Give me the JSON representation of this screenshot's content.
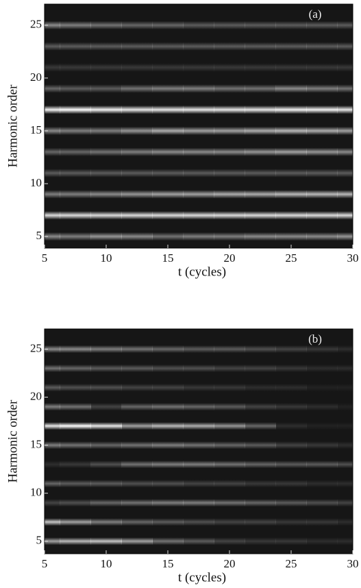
{
  "chart_data": [
    {
      "type": "heatmap",
      "panel_label": "(a)",
      "xlabel": "t (cycles)",
      "ylabel": "Harmonic order",
      "x": [
        5,
        7.5,
        10,
        12.5,
        15,
        17.5,
        20,
        22.5,
        25,
        27.5,
        30
      ],
      "xlim": [
        5,
        30
      ],
      "xticks": [
        5,
        10,
        15,
        20,
        25,
        30
      ],
      "ylim": [
        3.9,
        27
      ],
      "yticks": [
        5,
        10,
        15,
        20,
        25
      ],
      "rows": [
        {
          "harmonic": 25,
          "values": [
            0.5,
            0.45,
            0.4,
            0.35,
            0.35,
            0.3,
            0.3,
            0.3,
            0.3,
            0.3,
            0.3
          ]
        },
        {
          "harmonic": 23,
          "values": [
            0.3,
            0.3,
            0.3,
            0.3,
            0.3,
            0.3,
            0.3,
            0.3,
            0.3,
            0.3,
            0.3
          ]
        },
        {
          "harmonic": 21,
          "values": [
            0.15,
            0.15,
            0.15,
            0.15,
            0.15,
            0.15,
            0.15,
            0.15,
            0.15,
            0.15,
            0.15
          ]
        },
        {
          "harmonic": 19,
          "values": [
            0.35,
            0.3,
            0.3,
            0.4,
            0.45,
            0.45,
            0.4,
            0.4,
            0.5,
            0.45,
            0.4
          ]
        },
        {
          "harmonic": 17,
          "values": [
            0.95,
            1,
            0.95,
            0.9,
            0.9,
            0.9,
            0.9,
            0.9,
            0.95,
            0.95,
            0.9
          ]
        },
        {
          "harmonic": 15,
          "values": [
            0.5,
            0.45,
            0.45,
            0.55,
            0.65,
            0.6,
            0.6,
            0.65,
            0.7,
            0.65,
            0.6
          ]
        },
        {
          "harmonic": 13,
          "values": [
            0.35,
            0.35,
            0.4,
            0.45,
            0.5,
            0.5,
            0.5,
            0.55,
            0.6,
            0.55,
            0.5
          ]
        },
        {
          "harmonic": 11,
          "values": [
            0.3,
            0.3,
            0.3,
            0.3,
            0.3,
            0.3,
            0.3,
            0.3,
            0.3,
            0.3,
            0.3
          ]
        },
        {
          "harmonic": 9,
          "values": [
            0.45,
            0.45,
            0.5,
            0.55,
            0.6,
            0.6,
            0.65,
            0.65,
            0.7,
            0.7,
            0.7
          ]
        },
        {
          "harmonic": 7,
          "values": [
            0.85,
            0.85,
            0.85,
            0.85,
            0.85,
            0.85,
            0.85,
            0.85,
            0.85,
            0.85,
            0.85
          ]
        },
        {
          "harmonic": 5,
          "values": [
            0.5,
            0.45,
            0.55,
            0.5,
            0.4,
            0.45,
            0.45,
            0.5,
            0.5,
            0.5,
            0.55
          ]
        }
      ]
    },
    {
      "type": "heatmap",
      "panel_label": "(b)",
      "xlabel": "t (cycles)",
      "ylabel": "Harmonic order",
      "x": [
        5,
        7.5,
        10,
        12.5,
        15,
        17.5,
        20,
        22.5,
        25,
        27.5,
        30
      ],
      "xlim": [
        5,
        30
      ],
      "xticks": [
        5,
        10,
        15,
        20,
        25,
        30
      ],
      "ylim": [
        3.7,
        27.1
      ],
      "yticks": [
        5,
        10,
        15,
        20,
        25
      ],
      "rows": [
        {
          "harmonic": 25,
          "values": [
            0.5,
            0.5,
            0.45,
            0.4,
            0.35,
            0.3,
            0.3,
            0.25,
            0.2,
            0.15,
            0.1
          ]
        },
        {
          "harmonic": 23,
          "values": [
            0.4,
            0.35,
            0.3,
            0.3,
            0.25,
            0.25,
            0.2,
            0.2,
            0.15,
            0.1,
            0.1
          ]
        },
        {
          "harmonic": 21,
          "values": [
            0.3,
            0.25,
            0.25,
            0.2,
            0.2,
            0.15,
            0.15,
            0.1,
            0.1,
            0.05,
            0.05
          ]
        },
        {
          "harmonic": 19,
          "values": [
            0.45,
            0.4,
            0.2,
            0.35,
            0.4,
            0.35,
            0.3,
            0.2,
            0.15,
            0.1,
            0.05
          ]
        },
        {
          "harmonic": 17,
          "values": [
            0.9,
            1,
            0.9,
            0.6,
            0.7,
            0.65,
            0.55,
            0.35,
            0.1,
            0.05,
            0.05
          ]
        },
        {
          "harmonic": 15,
          "values": [
            0.45,
            0.4,
            0.35,
            0.4,
            0.45,
            0.4,
            0.35,
            0.3,
            0.2,
            0.15,
            0.1
          ]
        },
        {
          "harmonic": 13,
          "values": [
            0.1,
            0.15,
            0.25,
            0.4,
            0.45,
            0.45,
            0.4,
            0.35,
            0.3,
            0.3,
            0.25
          ]
        },
        {
          "harmonic": 11,
          "values": [
            0.35,
            0.3,
            0.3,
            0.25,
            0.25,
            0.2,
            0.2,
            0.15,
            0.15,
            0.1,
            0.1
          ]
        },
        {
          "harmonic": 9,
          "values": [
            0.2,
            0.25,
            0.35,
            0.4,
            0.45,
            0.45,
            0.4,
            0.35,
            0.3,
            0.25,
            0.2
          ]
        },
        {
          "harmonic": 7,
          "values": [
            0.75,
            0.6,
            0.45,
            0.35,
            0.3,
            0.25,
            0.2,
            0.2,
            0.15,
            0.15,
            0.1
          ]
        },
        {
          "harmonic": 5,
          "values": [
            0.6,
            0.7,
            0.75,
            0.6,
            0.4,
            0.3,
            0.2,
            0.15,
            0.15,
            0.1,
            0.1
          ]
        }
      ]
    }
  ]
}
